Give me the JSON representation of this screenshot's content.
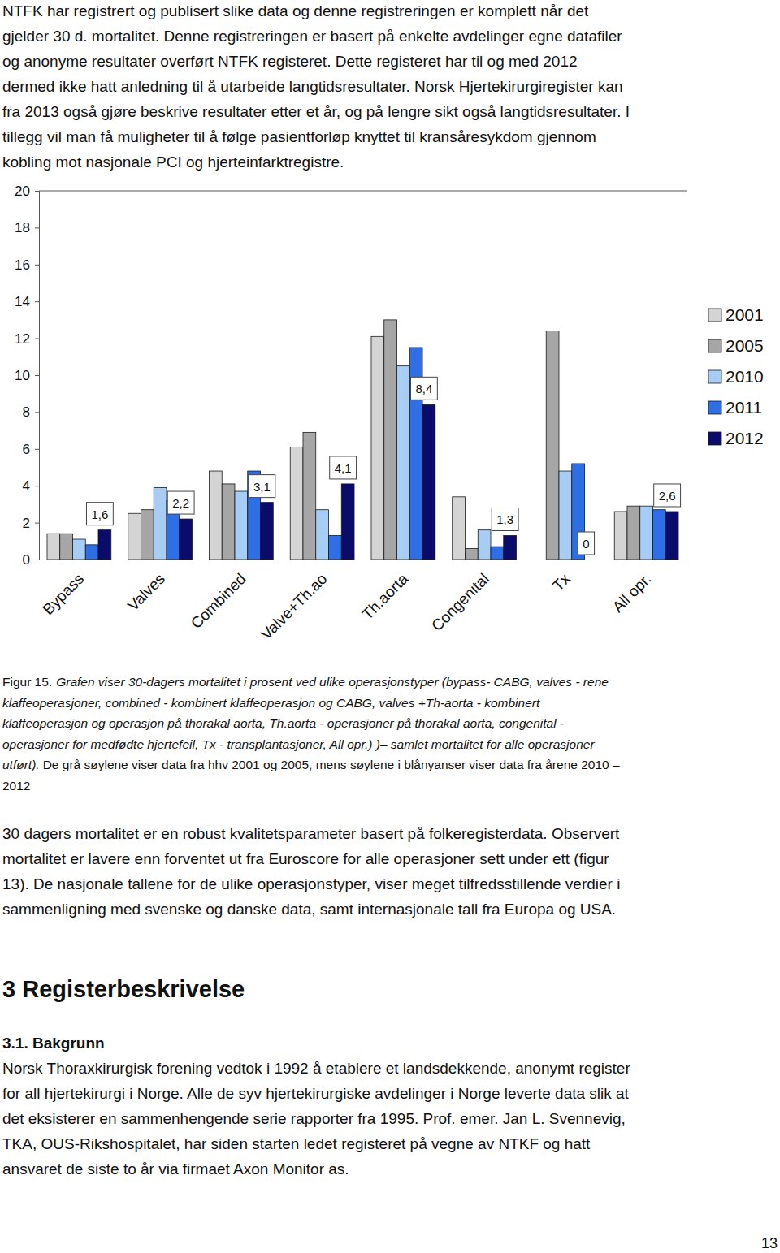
{
  "intro_lines": [
    "NTFK har registrert og publisert slike data og denne registreringen er komplett når det",
    "gjelder 30 d. mortalitet. Denne registreringen er basert på enkelte avdelinger egne datafiler",
    "og anonyme resultater overført NTFK registeret. Dette registeret har til og med 2012",
    "dermed ikke hatt anledning til å utarbeide langtidsresultater. Norsk Hjertekirurgiregister kan",
    "fra 2013 også gjøre beskrive resultater etter et år, og på lengre sikt også langtidsresultater. I",
    "tillegg vil man få muligheter til å følge pasientforløp knyttet til kransåresykdom gjennom",
    "kobling mot nasjonale PCI og hjerteinfarktregistre."
  ],
  "chart_data": {
    "type": "bar",
    "categories": [
      "Bypass",
      "Valves",
      "Combined",
      "Valve+Th.ao",
      "Th.aorta",
      "Congenital",
      "Tx",
      "All opr."
    ],
    "series": [
      {
        "name": "2001",
        "color": "#d4d4d4",
        "values": [
          1.4,
          2.5,
          4.8,
          6.1,
          12.1,
          3.4,
          null,
          2.6
        ]
      },
      {
        "name": "2005",
        "color": "#a6a6a6",
        "values": [
          1.4,
          2.7,
          4.1,
          6.9,
          13.0,
          0.6,
          12.4,
          2.9
        ]
      },
      {
        "name": "2010",
        "color": "#a8cdf4",
        "values": [
          1.1,
          3.9,
          3.7,
          2.7,
          10.5,
          1.6,
          4.8,
          2.9
        ]
      },
      {
        "name": "2011",
        "color": "#2f6fe6",
        "values": [
          0.8,
          3.2,
          4.8,
          1.3,
          11.5,
          0.7,
          5.2,
          2.7
        ]
      },
      {
        "name": "2012",
        "color": "#0b0b6b",
        "values": [
          1.6,
          2.2,
          3.1,
          4.1,
          8.4,
          1.3,
          0,
          2.6
        ],
        "data_labels": true,
        "value_labels": [
          "1,6",
          "2,2",
          "3,1",
          "4,1",
          "8,4",
          "1,3",
          "0",
          "2,6"
        ]
      }
    ],
    "ylim": [
      0,
      20
    ],
    "yticks": [
      0,
      2,
      4,
      6,
      8,
      10,
      12,
      14,
      16,
      18,
      20
    ],
    "grid": false,
    "legend": "right"
  },
  "caption": {
    "label": "Figur 15.",
    "italic_lines": [
      "Grafen viser 30-dagers mortalitet i prosent ved ulike operasjonstyper (bypass- CABG, valves - rene",
      "klaffeoperasjoner, combined - kombinert klaffeoperasjon og CABG, valves +Th-aorta - kombinert",
      "klaffeoperasjon og operasjon på thorakal aorta, Th.aorta - operasjoner på thorakal aorta, congenital -",
      "operasjoner for medfødte hjertefeil, Tx - transplantasjoner, All opr.) )– samlet mortalitet for alle operasjoner",
      "utført)."
    ],
    "plain_lines": [
      "De grå søylene viser data fra hhv 2001 og 2005, mens søylene i blånyanser viser data fra årene 2010 –",
      "2012"
    ]
  },
  "body_lines": [
    "30 dagers mortalitet er en robust kvalitetsparameter basert på folkeregisterdata. Observert",
    "mortalitet er lavere enn forventet ut fra Euroscore for alle operasjoner sett under ett (figur",
    "13). De nasjonale tallene for de ulike operasjonstyper, viser meget tilfredsstillende verdier i",
    "sammenligning med svenske og danske data, samt internasjonale tall fra Europa og USA."
  ],
  "heading": "3 Registerbeskrivelse",
  "subheading": "3.1. Bakgrunn",
  "section_lines": [
    "Norsk Thoraxkirurgisk forening vedtok i 1992 å etablere et landsdekkende, anonymt register",
    "for all hjertekirurgi i Norge. Alle de syv hjertekirurgiske avdelinger i Norge leverte data slik at",
    "det eksisterer en sammenhengende serie rapporter fra 1995. Prof. emer. Jan L. Svennevig,",
    "TKA, OUS-Rikshospitalet, har siden starten ledet registeret på vegne av NTKF og hatt",
    "ansvaret de siste to år via firmaet Axon Monitor as."
  ],
  "page_number": "13"
}
